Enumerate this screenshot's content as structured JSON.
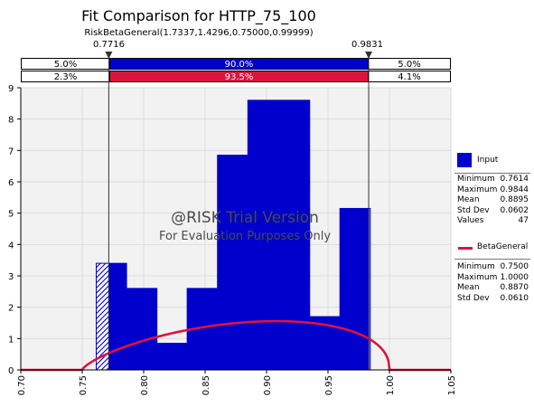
{
  "chart_data": {
    "type": "bar",
    "title": "Fit Comparison for HTTP_75_100",
    "subtitle": "RiskBetaGeneral(1.7337,1.4296,0.75000,0.99999)",
    "xlim": [
      0.7,
      1.05
    ],
    "ylim": [
      0,
      9
    ],
    "x_ticks": [
      "0.70",
      "0.75",
      "0.80",
      "0.85",
      "0.90",
      "0.95",
      "1.00",
      "1.05"
    ],
    "y_ticks": [
      "0",
      "1",
      "2",
      "3",
      "4",
      "5",
      "6",
      "7",
      "8",
      "9"
    ],
    "grid": true,
    "markers": {
      "left": {
        "value": 0.7716,
        "label": "0.7716"
      },
      "right": {
        "value": 0.9831,
        "label": "0.9831"
      }
    },
    "delimiter_bands": [
      {
        "left": "5.0%",
        "middle": "90.0%",
        "right": "5.0%",
        "color": "#0000cc"
      },
      {
        "left": "2.3%",
        "middle": "93.5%",
        "right": "4.1%",
        "color": "#dc143c"
      }
    ],
    "histogram": {
      "name": "Input",
      "color": "#0000cc",
      "bins": [
        {
          "x0": 0.7614,
          "x1": 0.7861,
          "y": 3.4
        },
        {
          "x0": 0.7861,
          "x1": 0.8108,
          "y": 2.6
        },
        {
          "x0": 0.8108,
          "x1": 0.8354,
          "y": 0.85
        },
        {
          "x0": 0.8354,
          "x1": 0.8601,
          "y": 2.6
        },
        {
          "x0": 0.8601,
          "x1": 0.8848,
          "y": 6.85
        },
        {
          "x0": 0.8848,
          "x1": 0.9351,
          "y": 8.6
        },
        {
          "x0": 0.9351,
          "x1": 0.9597,
          "y": 1.7
        },
        {
          "x0": 0.9597,
          "x1": 0.9844,
          "y": 5.15
        }
      ]
    },
    "fit_curve": {
      "name": "BetaGeneral",
      "color": "#dc143c",
      "alpha": 1.7337,
      "beta": 1.4296,
      "min": 0.75,
      "max": 0.99999
    },
    "legend": {
      "input": {
        "label": "Input",
        "stats": [
          {
            "k": "Minimum",
            "v": "0.7614"
          },
          {
            "k": "Maximum",
            "v": "0.9844"
          },
          {
            "k": "Mean",
            "v": "0.8895"
          },
          {
            "k": "Std Dev",
            "v": "0.0602"
          },
          {
            "k": "Values",
            "v": "47"
          }
        ]
      },
      "fit": {
        "label": "BetaGeneral",
        "stats": [
          {
            "k": "Minimum",
            "v": "0.7500"
          },
          {
            "k": "Maximum",
            "v": "1.0000"
          },
          {
            "k": "Mean",
            "v": "0.8870"
          },
          {
            "k": "Std Dev",
            "v": "0.0610"
          }
        ]
      }
    }
  },
  "watermark": {
    "line1": "@RISK Trial Version",
    "line2": "For Evaluation Purposes Only"
  }
}
